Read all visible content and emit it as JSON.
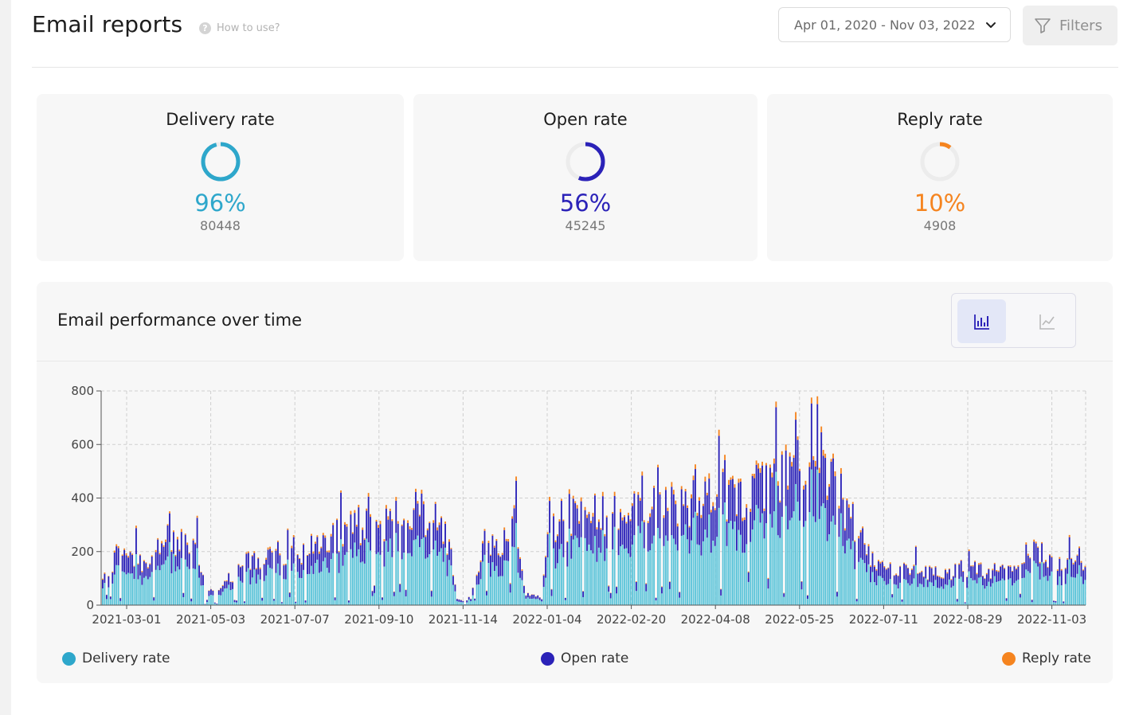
{
  "header": {
    "title": "Email reports",
    "how_to_use": "How to use?",
    "help_glyph": "?",
    "date_range": "Apr 01, 2020 - Nov 03, 2022",
    "filters_label": "Filters"
  },
  "cards": [
    {
      "title": "Delivery rate",
      "percent": "96%",
      "count": "80448",
      "fraction": 0.96,
      "color": "#2ea7cb"
    },
    {
      "title": "Open rate",
      "percent": "56%",
      "count": "45245",
      "fraction": 0.56,
      "color": "#2b22b8"
    },
    {
      "title": "Reply rate",
      "percent": "10%",
      "count": "4908",
      "fraction": 0.1,
      "color": "#f5841f"
    }
  ],
  "chart_panel": {
    "title": "Email performance over time",
    "view_toggle": [
      "bar-chart-icon",
      "line-chart-icon"
    ],
    "active_view": "bar-chart-icon"
  },
  "chart_data": {
    "type": "bar",
    "stacked": true,
    "x_tick_labels": [
      "2021-03-01",
      "2021-05-03",
      "2021-07-07",
      "2021-09-10",
      "2021-11-14",
      "2022-01-04",
      "2022-02-20",
      "2022-04-08",
      "2022-05-25",
      "2022-07-11",
      "2022-08-29",
      "2022-11-03"
    ],
    "y_ticks": [
      0,
      200,
      400,
      600,
      800
    ],
    "ylim": [
      0,
      800
    ],
    "grid": true,
    "legend_position": "bottom",
    "series": [
      {
        "name": "Delivery rate",
        "color": "#5bc4d9",
        "legend_color": "#2ea7cb"
      },
      {
        "name": "Open rate",
        "color": "#2b22b8",
        "legend_color": "#2b22b8"
      },
      {
        "name": "Reply rate",
        "color": "#f5841f",
        "legend_color": "#f5841f"
      }
    ],
    "profile_totals": [
      {
        "t": 0.0,
        "v": 110
      },
      {
        "t": 0.02,
        "v": 210
      },
      {
        "t": 0.04,
        "v": 170
      },
      {
        "t": 0.07,
        "v": 230
      },
      {
        "t": 0.095,
        "v": 240
      },
      {
        "t": 0.105,
        "v": 70
      },
      {
        "t": 0.115,
        "v": 40
      },
      {
        "t": 0.13,
        "v": 110
      },
      {
        "t": 0.15,
        "v": 170
      },
      {
        "t": 0.17,
        "v": 200
      },
      {
        "t": 0.2,
        "v": 175
      },
      {
        "t": 0.205,
        "v": 230
      },
      {
        "t": 0.23,
        "v": 250
      },
      {
        "t": 0.26,
        "v": 300
      },
      {
        "t": 0.29,
        "v": 330
      },
      {
        "t": 0.32,
        "v": 340
      },
      {
        "t": 0.345,
        "v": 330
      },
      {
        "t": 0.355,
        "v": 200
      },
      {
        "t": 0.36,
        "v": 20
      },
      {
        "t": 0.375,
        "v": 20
      },
      {
        "t": 0.385,
        "v": 200
      },
      {
        "t": 0.41,
        "v": 240
      },
      {
        "t": 0.42,
        "v": 330
      },
      {
        "t": 0.43,
        "v": 40
      },
      {
        "t": 0.445,
        "v": 30
      },
      {
        "t": 0.455,
        "v": 280
      },
      {
        "t": 0.48,
        "v": 330
      },
      {
        "t": 0.52,
        "v": 340
      },
      {
        "t": 0.55,
        "v": 370
      },
      {
        "t": 0.58,
        "v": 380
      },
      {
        "t": 0.61,
        "v": 390
      },
      {
        "t": 0.635,
        "v": 420
      },
      {
        "t": 0.66,
        "v": 440
      },
      {
        "t": 0.68,
        "v": 470
      },
      {
        "t": 0.7,
        "v": 500
      },
      {
        "t": 0.715,
        "v": 520
      },
      {
        "t": 0.73,
        "v": 560
      },
      {
        "t": 0.745,
        "v": 480
      },
      {
        "t": 0.755,
        "v": 380
      },
      {
        "t": 0.765,
        "v": 300
      },
      {
        "t": 0.78,
        "v": 190
      },
      {
        "t": 0.8,
        "v": 150
      },
      {
        "t": 0.82,
        "v": 140
      },
      {
        "t": 0.85,
        "v": 120
      },
      {
        "t": 0.88,
        "v": 140
      },
      {
        "t": 0.9,
        "v": 120
      },
      {
        "t": 0.92,
        "v": 140
      },
      {
        "t": 0.935,
        "v": 190
      },
      {
        "t": 0.955,
        "v": 210
      },
      {
        "t": 0.97,
        "v": 160
      },
      {
        "t": 0.985,
        "v": 170
      },
      {
        "t": 1.0,
        "v": 170
      }
    ],
    "approx_max": 780,
    "approx_bar_count": 500
  }
}
